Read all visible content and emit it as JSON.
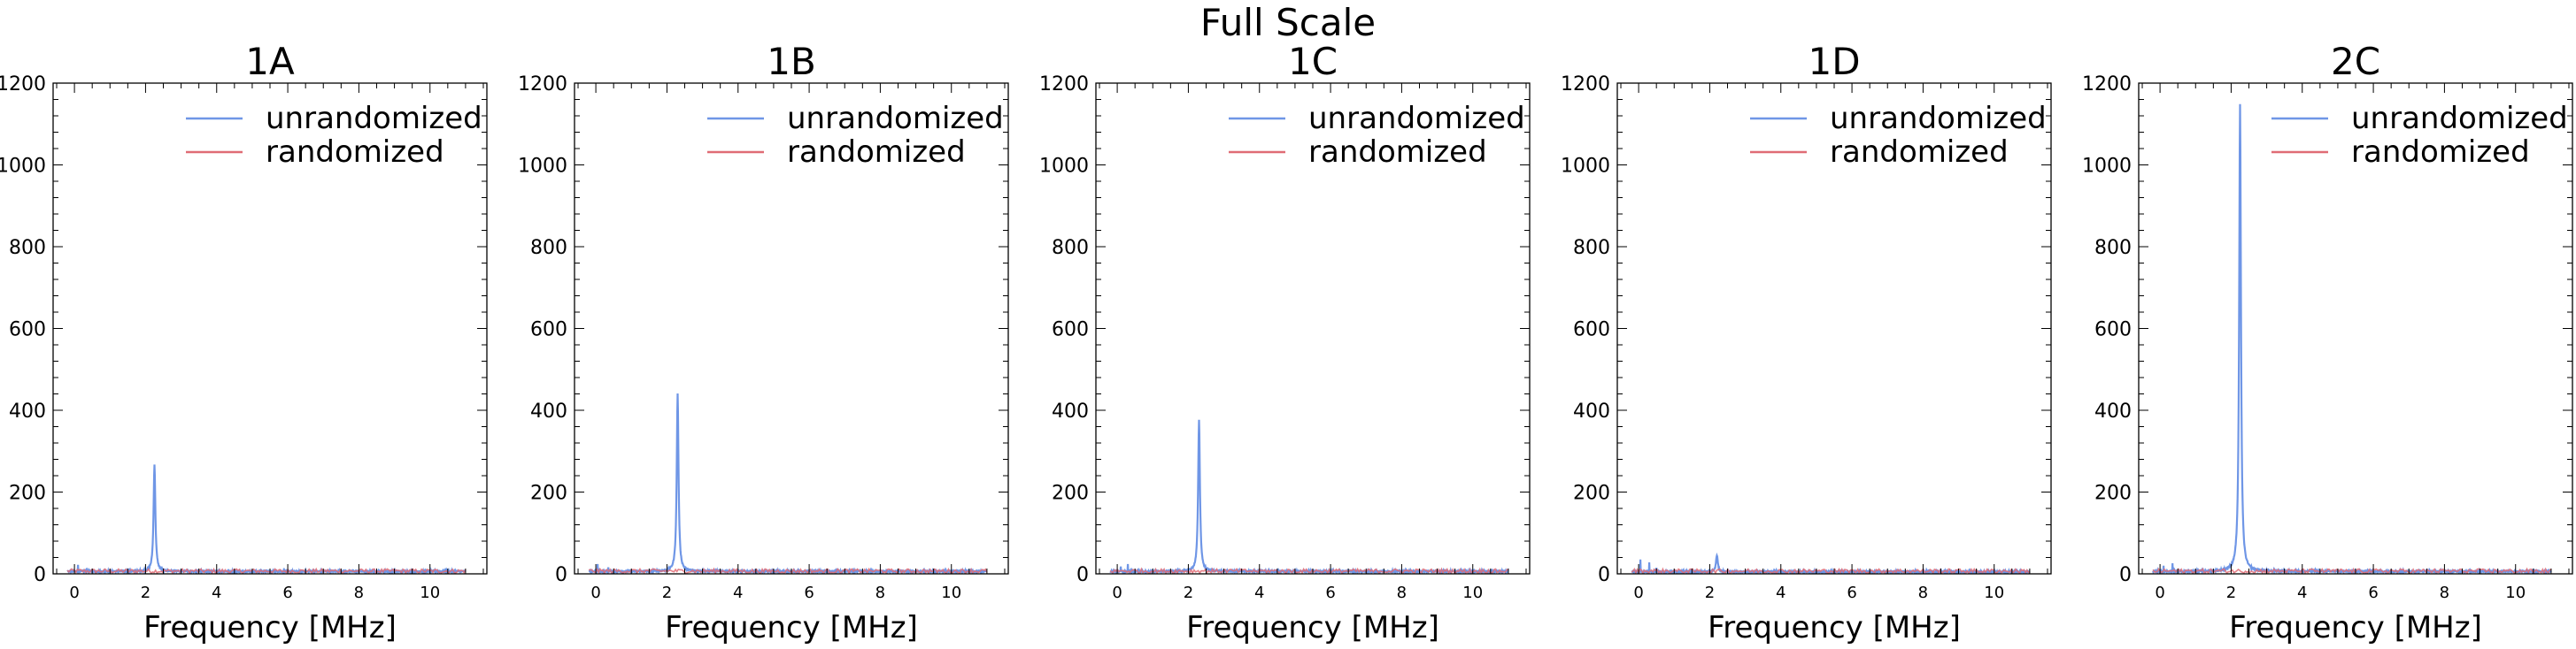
{
  "figure": {
    "title": "Full Scale",
    "legend_placement": "top-right",
    "colors": {
      "unrandomized": "#6f96e6",
      "randomized": "#e06c75"
    }
  },
  "chart_data": [
    {
      "type": "line",
      "title": "1A",
      "xlabel": "Frequency [MHz]",
      "ylabel": "",
      "xlim": [
        -0.6,
        11.6
      ],
      "ylim": [
        0,
        1200
      ],
      "xticks": [
        0,
        2,
        4,
        6,
        8,
        10
      ],
      "yticks": [
        0,
        200,
        400,
        600,
        800,
        1000,
        1200
      ],
      "grid": false,
      "series": [
        {
          "name": "unrandomized",
          "peak_x": 2.25,
          "peak_y": 268,
          "baseline": 6,
          "small_peaks": [
            [
              0.1,
              22
            ],
            [
              0.35,
              14
            ],
            [
              4.0,
              9
            ],
            [
              6.0,
              8
            ]
          ]
        },
        {
          "name": "randomized",
          "baseline": 7,
          "noise": 5
        }
      ]
    },
    {
      "type": "line",
      "title": "1B",
      "xlabel": "Frequency [MHz]",
      "ylabel": "",
      "xlim": [
        -0.6,
        11.6
      ],
      "ylim": [
        0,
        1200
      ],
      "xticks": [
        0,
        2,
        4,
        6,
        8,
        10
      ],
      "yticks": [
        0,
        200,
        400,
        600,
        800,
        1000,
        1200
      ],
      "grid": false,
      "series": [
        {
          "name": "unrandomized",
          "peak_x": 2.3,
          "peak_y": 440,
          "baseline": 6,
          "small_peaks": [
            [
              0.05,
              24
            ],
            [
              0.35,
              16
            ],
            [
              5.0,
              8
            ]
          ]
        },
        {
          "name": "randomized",
          "baseline": 7,
          "noise": 5
        }
      ]
    },
    {
      "type": "line",
      "title": "1C",
      "xlabel": "Frequency [MHz]",
      "ylabel": "",
      "xlim": [
        -0.6,
        11.6
      ],
      "ylim": [
        0,
        1200
      ],
      "xticks": [
        0,
        2,
        4,
        6,
        8,
        10
      ],
      "yticks": [
        0,
        200,
        400,
        600,
        800,
        1000,
        1200
      ],
      "grid": false,
      "series": [
        {
          "name": "unrandomized",
          "peak_x": 2.3,
          "peak_y": 378,
          "baseline": 6,
          "small_peaks": [
            [
              0.1,
              18
            ],
            [
              0.3,
              24
            ],
            [
              5.0,
              9
            ]
          ]
        },
        {
          "name": "randomized",
          "baseline": 7,
          "noise": 5
        }
      ]
    },
    {
      "type": "line",
      "title": "1D",
      "xlabel": "Frequency [MHz]",
      "ylabel": "",
      "xlim": [
        -0.6,
        11.6
      ],
      "ylim": [
        0,
        1200
      ],
      "xticks": [
        0,
        2,
        4,
        6,
        8,
        10
      ],
      "yticks": [
        0,
        200,
        400,
        600,
        800,
        1000,
        1200
      ],
      "grid": false,
      "series": [
        {
          "name": "unrandomized",
          "peak_x": 2.2,
          "peak_y": 46,
          "baseline": 5,
          "small_peaks": [
            [
              0.05,
              35
            ],
            [
              0.3,
              28
            ],
            [
              0.5,
              15
            ]
          ]
        },
        {
          "name": "randomized",
          "baseline": 7,
          "noise": 5
        }
      ]
    },
    {
      "type": "line",
      "title": "2C",
      "xlabel": "Frequency [MHz]",
      "ylabel": "",
      "xlim": [
        -0.6,
        11.6
      ],
      "ylim": [
        0,
        1200
      ],
      "xticks": [
        0,
        2,
        4,
        6,
        8,
        10
      ],
      "yticks": [
        0,
        200,
        400,
        600,
        800,
        1000,
        1200
      ],
      "grid": false,
      "series": [
        {
          "name": "unrandomized",
          "peak_x": 2.25,
          "peak_y": 1150,
          "baseline": 6,
          "small_peaks": [
            [
              0.1,
              20
            ],
            [
              0.35,
              26
            ],
            [
              4.0,
              8
            ]
          ]
        },
        {
          "name": "randomized",
          "baseline": 7,
          "noise": 5
        }
      ]
    }
  ]
}
